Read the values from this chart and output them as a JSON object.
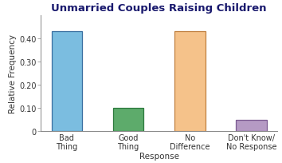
{
  "title": "Unmarried Couples Raising Children",
  "xlabel": "Response",
  "ylabel": "Relative Frequency",
  "categories": [
    "Bad\nThing",
    "Good\nThing",
    "No\nDifference",
    "Don't Know/\nNo Response"
  ],
  "values": [
    0.43,
    0.1,
    0.43,
    0.05
  ],
  "bar_colors": [
    "#7bbde0",
    "#5dab6b",
    "#f5c28a",
    "#b59ac4"
  ],
  "bar_edge_colors": [
    "#3a6fa0",
    "#2d7a3e",
    "#c08040",
    "#7a5a90"
  ],
  "ylim": [
    0,
    0.5
  ],
  "yticks": [
    0,
    0.1,
    0.2,
    0.3,
    0.4
  ],
  "ytick_labels": [
    "0",
    "0.10",
    "0.20",
    "0.30",
    "0.40"
  ],
  "title_fontsize": 9.5,
  "label_fontsize": 7.5,
  "tick_fontsize": 7,
  "title_color": "#1a1a6e",
  "label_color": "#333333",
  "background_color": "#ffffff"
}
